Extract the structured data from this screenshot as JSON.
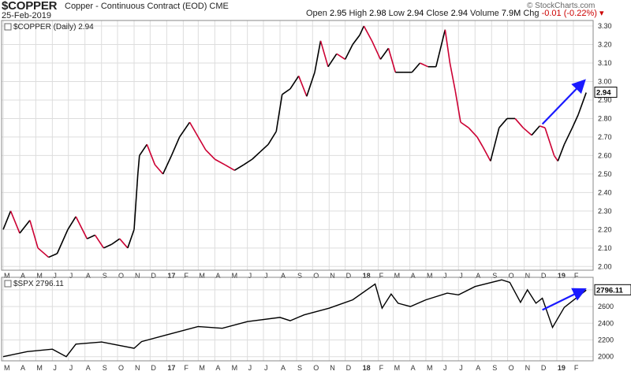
{
  "header": {
    "symbol": "$COPPER",
    "description": "Copper - Continuous Contract (EOD)",
    "exchange": "CME",
    "date": "25-Feb-2019",
    "open_label": "Open",
    "open": "2.95",
    "high_label": "High",
    "high": "2.98",
    "low_label": "Low",
    "low": "2.94",
    "close_label": "Close",
    "close": "2.94",
    "volume_label": "Volume",
    "volume": "7.9M",
    "chg_label": "Chg",
    "chg": "-0.01 (-0.22%)",
    "source": "© StockCharts.com"
  },
  "colors": {
    "bull": "#000000",
    "bear": "#cc0033",
    "arrow": "#1a1aff",
    "grid": "#dddddd",
    "spx_line": "#000000"
  },
  "chart_data": [
    {
      "type": "line",
      "title": "$COPPER (Daily) 2.94",
      "last_value_label": "2.94",
      "ylim": [
        1.98,
        3.33
      ],
      "yticks": [
        2.0,
        2.1,
        2.2,
        2.3,
        2.4,
        2.5,
        2.6,
        2.7,
        2.8,
        2.9,
        3.0,
        3.1,
        3.2,
        3.3
      ],
      "ytick_labels": [
        "2.00",
        "2.10",
        "2.20",
        "2.30",
        "2.40",
        "2.50",
        "2.60",
        "2.70",
        "2.80",
        "2.90",
        "3.00",
        "3.10",
        "3.20",
        "3.30"
      ],
      "series": [
        {
          "x": [
            "2016-03-01",
            "2016-03-15",
            "2016-04-01",
            "2016-04-20",
            "2016-05-05",
            "2016-05-25",
            "2016-06-10",
            "2016-06-30",
            "2016-07-15",
            "2016-08-05",
            "2016-08-20",
            "2016-09-05",
            "2016-09-20",
            "2016-10-05",
            "2016-10-20",
            "2016-11-01",
            "2016-11-08",
            "2016-11-11",
            "2016-11-25",
            "2016-12-10",
            "2016-12-25",
            "2017-01-10",
            "2017-01-25",
            "2017-02-13",
            "2017-02-25",
            "2017-03-15",
            "2017-04-01",
            "2017-04-20",
            "2017-05-08",
            "2017-05-25",
            "2017-06-10",
            "2017-06-25",
            "2017-07-10",
            "2017-07-25",
            "2017-08-05",
            "2017-08-20",
            "2017-09-05",
            "2017-09-20",
            "2017-10-05",
            "2017-10-16",
            "2017-10-30",
            "2017-11-15",
            "2017-12-01",
            "2017-12-15",
            "2017-12-28",
            "2018-01-05",
            "2018-01-20",
            "2018-02-05",
            "2018-02-20",
            "2018-03-05",
            "2018-03-20",
            "2018-04-05",
            "2018-04-20",
            "2018-05-05",
            "2018-05-20",
            "2018-06-06",
            "2018-06-15",
            "2018-06-25",
            "2018-07-05",
            "2018-07-20",
            "2018-08-05",
            "2018-08-15",
            "2018-08-30",
            "2018-09-15",
            "2018-09-30",
            "2018-10-15",
            "2018-10-30",
            "2018-11-15",
            "2018-11-30",
            "2018-12-10",
            "2018-12-27",
            "2019-01-03",
            "2019-01-15",
            "2019-01-30",
            "2019-02-10",
            "2019-02-25"
          ],
          "values": [
            2.2,
            2.3,
            2.18,
            2.25,
            2.1,
            2.05,
            2.07,
            2.2,
            2.27,
            2.15,
            2.17,
            2.1,
            2.12,
            2.15,
            2.1,
            2.2,
            2.5,
            2.6,
            2.66,
            2.55,
            2.5,
            2.6,
            2.7,
            2.78,
            2.72,
            2.63,
            2.58,
            2.55,
            2.52,
            2.55,
            2.58,
            2.62,
            2.66,
            2.73,
            2.93,
            2.96,
            3.03,
            2.92,
            3.05,
            3.22,
            3.08,
            3.15,
            3.12,
            3.2,
            3.25,
            3.3,
            3.22,
            3.12,
            3.18,
            3.05,
            3.05,
            3.05,
            3.1,
            3.08,
            3.08,
            3.28,
            3.1,
            2.95,
            2.78,
            2.75,
            2.7,
            2.65,
            2.57,
            2.75,
            2.8,
            2.8,
            2.75,
            2.71,
            2.76,
            2.75,
            2.6,
            2.57,
            2.66,
            2.75,
            2.82,
            2.94
          ]
        }
      ]
    },
    {
      "type": "line",
      "title": "$SPX 2796.11",
      "last_value_label": "2796.11",
      "ylim": [
        1950,
        2950
      ],
      "yticks": [
        2000,
        2200,
        2400,
        2600,
        2800
      ],
      "ytick_labels": [
        "2000",
        "2200",
        "2400",
        "2600",
        "2800"
      ],
      "series": [
        {
          "x": [
            "2016-03-01",
            "2016-04-15",
            "2016-06-01",
            "2016-06-27",
            "2016-07-15",
            "2016-09-01",
            "2016-11-01",
            "2016-11-15",
            "2017-01-01",
            "2017-03-01",
            "2017-04-15",
            "2017-06-01",
            "2017-08-01",
            "2017-08-20",
            "2017-09-15",
            "2017-11-01",
            "2017-12-15",
            "2018-01-26",
            "2018-02-08",
            "2018-02-25",
            "2018-03-10",
            "2018-04-02",
            "2018-05-01",
            "2018-06-10",
            "2018-07-01",
            "2018-08-01",
            "2018-09-20",
            "2018-10-05",
            "2018-10-25",
            "2018-11-07",
            "2018-11-23",
            "2018-12-05",
            "2018-12-24",
            "2019-01-15",
            "2019-02-25"
          ],
          "values": [
            2000,
            2060,
            2090,
            2000,
            2150,
            2175,
            2100,
            2180,
            2260,
            2360,
            2340,
            2420,
            2470,
            2430,
            2500,
            2580,
            2680,
            2870,
            2580,
            2750,
            2640,
            2600,
            2680,
            2760,
            2740,
            2840,
            2920,
            2890,
            2650,
            2800,
            2640,
            2700,
            2350,
            2590,
            2796.11
          ]
        }
      ]
    }
  ],
  "time_axis": {
    "months": [
      "M",
      "A",
      "M",
      "J",
      "J",
      "A",
      "S",
      "O",
      "N",
      "D",
      "17",
      "F",
      "M",
      "A",
      "M",
      "J",
      "J",
      "A",
      "S",
      "O",
      "N",
      "D",
      "18",
      "F",
      "M",
      "A",
      "M",
      "J",
      "J",
      "A",
      "S",
      "O",
      "N",
      "D",
      "19",
      "F"
    ],
    "year_labels": [
      "17",
      "18",
      "19"
    ]
  }
}
